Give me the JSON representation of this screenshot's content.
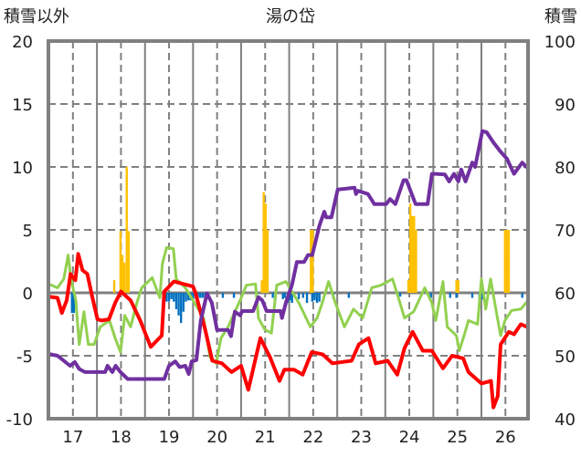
{
  "chart_data": {
    "type": "line",
    "title": "湯の岱",
    "ylabel_left": "積雪以外",
    "ylabel_right": "積雪",
    "xlim": [
      16.49,
      26.47
    ],
    "ylim_left": [
      -10,
      20
    ],
    "ylim_right": [
      40,
      100
    ],
    "yticks_left": [
      "-10",
      "-5",
      "0",
      "5",
      "10",
      "15",
      "20"
    ],
    "yticks_left_values": [
      -10,
      -5,
      0,
      5,
      10,
      15,
      20
    ],
    "yticks_right": [
      "40",
      "50",
      "60",
      "70",
      "80",
      "90",
      "100"
    ],
    "yticks_right_values": [
      40,
      50,
      60,
      70,
      80,
      90,
      100
    ],
    "xticks": [
      "17",
      "18",
      "19",
      "20",
      "21",
      "22",
      "23",
      "24",
      "25",
      "26"
    ],
    "xticks_values": [
      17,
      18,
      19,
      20,
      21,
      22,
      23,
      24,
      25,
      26
    ],
    "grid": true,
    "bars": [
      {
        "color": "#FFC000",
        "axis": "left",
        "width": 0.045,
        "points": [
          [
            17.86,
            1
          ],
          [
            17.99,
            4.9
          ],
          [
            18.03,
            3.0
          ],
          [
            18.07,
            2.4
          ],
          [
            18.12,
            10
          ],
          [
            18.16,
            4.9
          ],
          [
            20.93,
            1
          ],
          [
            20.97,
            8.0
          ],
          [
            21.01,
            7.1
          ],
          [
            21.05,
            5
          ],
          [
            21.95,
            5
          ],
          [
            21.99,
            5
          ],
          [
            23.98,
            1
          ],
          [
            24.02,
            7.1
          ],
          [
            24.06,
            6.1
          ],
          [
            24.1,
            6.1
          ],
          [
            24.14,
            5
          ],
          [
            24.98,
            1
          ],
          [
            25.02,
            1
          ],
          [
            25.99,
            5
          ],
          [
            26.03,
            5
          ],
          [
            26.07,
            5
          ]
        ]
      },
      {
        "color": "#0070C0",
        "axis": "left",
        "width": 0.045,
        "points": [
          [
            16.98,
            -1.6
          ],
          [
            17.02,
            -1.6
          ],
          [
            18.95,
            -0.7
          ],
          [
            19.0,
            -0.7
          ],
          [
            19.05,
            -0.5
          ],
          [
            19.1,
            -0.7
          ],
          [
            19.15,
            -1.3
          ],
          [
            19.2,
            -1.8
          ],
          [
            19.25,
            -2.4
          ],
          [
            19.3,
            -1.5
          ],
          [
            19.35,
            -0.7
          ],
          [
            19.4,
            -0.6
          ],
          [
            19.45,
            -0.6
          ],
          [
            19.5,
            -0.5
          ],
          [
            19.55,
            -0.4
          ],
          [
            19.6,
            -0.4
          ],
          [
            19.65,
            -0.4
          ],
          [
            19.7,
            -0.4
          ],
          [
            19.75,
            -0.4
          ],
          [
            20.12,
            -0.4
          ],
          [
            20.35,
            -0.4
          ],
          [
            21.16,
            -0.4
          ],
          [
            21.37,
            -0.5
          ],
          [
            21.41,
            -0.4
          ],
          [
            21.47,
            -0.8
          ],
          [
            21.52,
            -0.6
          ],
          [
            21.56,
            -0.8
          ],
          [
            21.7,
            -0.5
          ],
          [
            21.79,
            -0.4
          ],
          [
            21.87,
            -0.8
          ],
          [
            21.98,
            -0.7
          ],
          [
            22.03,
            -0.6
          ],
          [
            22.08,
            -0.8
          ],
          [
            22.13,
            -0.7
          ],
          [
            22.42,
            -0.5
          ],
          [
            22.74,
            -0.4
          ],
          [
            23.81,
            -0.3
          ],
          [
            24.45,
            -0.4
          ],
          [
            24.85,
            -0.4
          ],
          [
            24.98,
            -0.4
          ],
          [
            25.31,
            -0.4
          ],
          [
            25.46,
            -0.6
          ],
          [
            25.51,
            -0.5
          ],
          [
            25.55,
            -0.6
          ],
          [
            26.35,
            -0.4
          ]
        ]
      }
    ],
    "series": [
      {
        "color": "#92D050",
        "axis": "left",
        "points": [
          [
            16.49,
            0.7
          ],
          [
            16.68,
            0.4
          ],
          [
            16.81,
            1.1
          ],
          [
            16.9,
            3.0
          ],
          [
            16.96,
            1.1
          ],
          [
            17.06,
            -0.6
          ],
          [
            17.13,
            -4.1
          ],
          [
            17.23,
            -1.5
          ],
          [
            17.32,
            -4.1
          ],
          [
            17.44,
            -4.1
          ],
          [
            17.57,
            -2.7
          ],
          [
            17.76,
            -2.2
          ],
          [
            17.89,
            -3.7
          ],
          [
            17.99,
            -4.7
          ],
          [
            18.08,
            -1.8
          ],
          [
            18.2,
            -2.7
          ],
          [
            18.33,
            -0.8
          ],
          [
            18.43,
            0.4
          ],
          [
            18.65,
            1.2
          ],
          [
            18.81,
            -0.4
          ],
          [
            18.86,
            2.3
          ],
          [
            18.95,
            3.6
          ],
          [
            19.09,
            3.5
          ],
          [
            19.15,
            1.1
          ],
          [
            19.34,
            0.4
          ],
          [
            19.53,
            -0.8
          ],
          [
            19.72,
            -2.0
          ],
          [
            19.85,
            -5.1
          ],
          [
            19.98,
            -5.6
          ],
          [
            20.08,
            -3.6
          ],
          [
            20.23,
            -2.7
          ],
          [
            20.37,
            -1.5
          ],
          [
            20.48,
            -0.6
          ],
          [
            20.61,
            0.6
          ],
          [
            20.8,
            0.7
          ],
          [
            20.86,
            -2.0
          ],
          [
            20.99,
            -2.9
          ],
          [
            21.13,
            -3.2
          ],
          [
            21.24,
            0.6
          ],
          [
            21.43,
            0.9
          ],
          [
            21.51,
            0.4
          ],
          [
            21.7,
            -0.8
          ],
          [
            21.94,
            -2.7
          ],
          [
            22.08,
            -2.0
          ],
          [
            22.19,
            -0.8
          ],
          [
            22.32,
            0.9
          ],
          [
            22.46,
            -0.8
          ],
          [
            22.65,
            -2.7
          ],
          [
            22.84,
            -1.3
          ],
          [
            23.03,
            -2.0
          ],
          [
            23.22,
            0.4
          ],
          [
            23.41,
            0.6
          ],
          [
            23.65,
            1.1
          ],
          [
            23.79,
            -0.6
          ],
          [
            23.9,
            -2.0
          ],
          [
            24.09,
            -1.5
          ],
          [
            24.32,
            0.4
          ],
          [
            24.47,
            -0.8
          ],
          [
            24.55,
            -2.2
          ],
          [
            24.7,
            0.9
          ],
          [
            24.79,
            -2.7
          ],
          [
            24.98,
            -3.4
          ],
          [
            25.04,
            -4.6
          ],
          [
            25.14,
            -3.4
          ],
          [
            25.23,
            -2.2
          ],
          [
            25.42,
            -2.5
          ],
          [
            25.5,
            1.1
          ],
          [
            25.59,
            -1.3
          ],
          [
            25.69,
            1.1
          ],
          [
            25.8,
            -1.3
          ],
          [
            25.9,
            -3.4
          ],
          [
            25.99,
            -2.2
          ],
          [
            26.13,
            -1.4
          ],
          [
            26.32,
            -1.3
          ],
          [
            26.45,
            -0.7
          ]
        ]
      },
      {
        "color": "#FF0000",
        "axis": "left",
        "points": [
          [
            16.49,
            -0.3
          ],
          [
            16.68,
            -0.4
          ],
          [
            16.77,
            -1.6
          ],
          [
            16.87,
            -0.6
          ],
          [
            16.95,
            1.5
          ],
          [
            17.05,
            1.0
          ],
          [
            17.11,
            3.1
          ],
          [
            17.2,
            1.8
          ],
          [
            17.3,
            1.5
          ],
          [
            17.4,
            -0.3
          ],
          [
            17.51,
            -2.1
          ],
          [
            17.6,
            -2.2
          ],
          [
            17.75,
            -2.1
          ],
          [
            17.88,
            -0.8
          ],
          [
            18.0,
            0.1
          ],
          [
            18.2,
            -0.6
          ],
          [
            18.4,
            -2.2
          ],
          [
            18.62,
            -4.3
          ],
          [
            18.85,
            -3.4
          ],
          [
            18.9,
            0.1
          ],
          [
            19.1,
            0.9
          ],
          [
            19.3,
            0.7
          ],
          [
            19.5,
            0.5
          ],
          [
            19.55,
            0.0
          ],
          [
            19.75,
            -2.9
          ],
          [
            19.9,
            -5.4
          ],
          [
            20.1,
            -5.6
          ],
          [
            20.3,
            -6.3
          ],
          [
            20.5,
            -5.8
          ],
          [
            20.65,
            -7.7
          ],
          [
            20.9,
            -3.6
          ],
          [
            21.1,
            -5.1
          ],
          [
            21.3,
            -7.0
          ],
          [
            21.4,
            -6.1
          ],
          [
            21.6,
            -6.1
          ],
          [
            21.78,
            -6.5
          ],
          [
            21.97,
            -4.7
          ],
          [
            22.2,
            -4.9
          ],
          [
            22.4,
            -5.6
          ],
          [
            22.8,
            -5.4
          ],
          [
            22.95,
            -4.1
          ],
          [
            23.15,
            -3.6
          ],
          [
            23.3,
            -5.6
          ],
          [
            23.55,
            -5.4
          ],
          [
            23.75,
            -6.5
          ],
          [
            23.9,
            -4.4
          ],
          [
            24.07,
            -3.1
          ],
          [
            24.28,
            -4.6
          ],
          [
            24.47,
            -4.6
          ],
          [
            24.7,
            -6.0
          ],
          [
            24.89,
            -5.0
          ],
          [
            25.12,
            -5.2
          ],
          [
            25.23,
            -6.3
          ],
          [
            25.5,
            -7.2
          ],
          [
            25.7,
            -7.0
          ],
          [
            25.75,
            -9.1
          ],
          [
            25.84,
            -8.2
          ],
          [
            25.9,
            -4.1
          ],
          [
            26.07,
            -3.1
          ],
          [
            26.18,
            -3.3
          ],
          [
            26.32,
            -2.5
          ],
          [
            26.45,
            -2.7
          ]
        ]
      },
      {
        "color": "#7030A0",
        "axis": "right",
        "points": [
          [
            16.49,
            50.3
          ],
          [
            16.68,
            50.0
          ],
          [
            16.94,
            48.4
          ],
          [
            17.04,
            49.0
          ],
          [
            17.13,
            47.9
          ],
          [
            17.25,
            47.4
          ],
          [
            17.67,
            47.4
          ],
          [
            17.72,
            48.4
          ],
          [
            17.82,
            47.4
          ],
          [
            17.89,
            48.4
          ],
          [
            17.99,
            47.4
          ],
          [
            18.14,
            46.3
          ],
          [
            18.9,
            46.3
          ],
          [
            19.0,
            48.4
          ],
          [
            19.13,
            49.1
          ],
          [
            19.22,
            48.2
          ],
          [
            19.34,
            48.4
          ],
          [
            19.41,
            47.1
          ],
          [
            19.47,
            49.1
          ],
          [
            19.57,
            49.3
          ],
          [
            19.66,
            55.6
          ],
          [
            19.79,
            59.9
          ],
          [
            19.89,
            58.4
          ],
          [
            20.0,
            54.1
          ],
          [
            20.23,
            54.1
          ],
          [
            20.29,
            53.1
          ],
          [
            20.37,
            57.0
          ],
          [
            20.48,
            56.4
          ],
          [
            20.52,
            57.1
          ],
          [
            20.75,
            57.1
          ],
          [
            20.86,
            59.3
          ],
          [
            20.94,
            58.8
          ],
          [
            21.03,
            57.1
          ],
          [
            21.32,
            57.1
          ],
          [
            21.35,
            56.0
          ],
          [
            21.43,
            58.4
          ],
          [
            21.56,
            61.3
          ],
          [
            21.66,
            64.9
          ],
          [
            21.81,
            64.9
          ],
          [
            21.89,
            66.0
          ],
          [
            21.98,
            66.0
          ],
          [
            22.13,
            70.7
          ],
          [
            22.23,
            72.9
          ],
          [
            22.27,
            72.0
          ],
          [
            22.38,
            72.0
          ],
          [
            22.51,
            76.4
          ],
          [
            22.86,
            76.7
          ],
          [
            22.89,
            75.7
          ],
          [
            22.93,
            76.2
          ],
          [
            23.14,
            75.7
          ],
          [
            23.27,
            74.1
          ],
          [
            23.52,
            74.1
          ],
          [
            23.6,
            74.9
          ],
          [
            23.71,
            74.1
          ],
          [
            23.88,
            77.9
          ],
          [
            23.94,
            77.9
          ],
          [
            24.13,
            74.1
          ],
          [
            24.38,
            74.1
          ],
          [
            24.47,
            78.9
          ],
          [
            24.55,
            78.9
          ],
          [
            24.74,
            78.8
          ],
          [
            24.83,
            77.7
          ],
          [
            24.93,
            78.9
          ],
          [
            25.02,
            77.7
          ],
          [
            25.08,
            79.6
          ],
          [
            25.17,
            77.7
          ],
          [
            25.31,
            80.7
          ],
          [
            25.37,
            80.0
          ],
          [
            25.52,
            85.7
          ],
          [
            25.61,
            85.5
          ],
          [
            25.75,
            83.9
          ],
          [
            25.9,
            82.4
          ],
          [
            26.03,
            81.3
          ],
          [
            26.18,
            78.9
          ],
          [
            26.35,
            80.7
          ],
          [
            26.45,
            79.9
          ]
        ]
      }
    ]
  }
}
